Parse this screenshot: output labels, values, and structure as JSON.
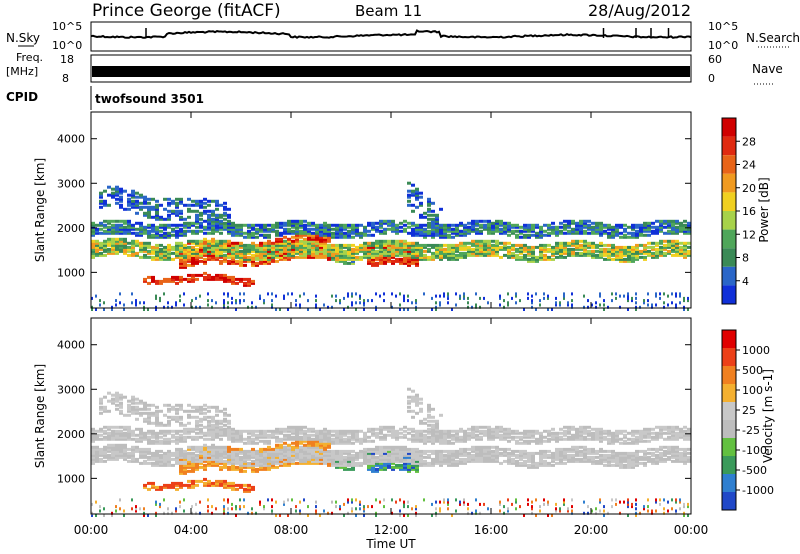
{
  "header": {
    "station": "Prince George (fitACF)",
    "beam": "Beam 11",
    "date": "28/Aug/2012"
  },
  "top_panels": {
    "nsky_label": "N.Sky",
    "nsky_ticks": [
      "10^5",
      "10^0"
    ],
    "nsearch_label": "N.Search",
    "nsearch_ticks": [
      "10^5",
      "10^0"
    ],
    "freq_label_1": "Freq.",
    "freq_label_2": "[MHz]",
    "freq_ticks": [
      "18",
      "8"
    ],
    "nave_label": "Nave",
    "nave_ticks": [
      "60",
      "0"
    ],
    "cpid_label": "CPID",
    "cpid_value": "twofsound 3501"
  },
  "colors": {
    "power_scale": [
      "#1030d8",
      "#2a66c8",
      "#3a8a56",
      "#4fa65a",
      "#a7d24a",
      "#f0d020",
      "#f09a20",
      "#e86418",
      "#e02a10",
      "#d00000"
    ],
    "velocity_scale": [
      "#2048c8",
      "#2f7fd0",
      "#3a9a5a",
      "#62c040",
      "#bdbdbd",
      "#c8c8c8",
      "#f4b030",
      "#f08020",
      "#ec4018",
      "#e00000"
    ],
    "ground_scatter": "#b8b8b8"
  },
  "chart_data": [
    {
      "type": "heatmap",
      "name": "power",
      "ylabel": "Slant Range [km]",
      "yticks": [
        1000,
        2000,
        3000,
        4000
      ],
      "ylim": [
        200,
        4600
      ],
      "xlim": [
        0,
        24
      ],
      "colorbar_label": "Power [dB]",
      "colorbar_ticks": [
        "28",
        "24",
        "20",
        "16",
        "12",
        "8",
        "4"
      ],
      "colorbar_range": [
        0,
        30
      ]
    },
    {
      "type": "heatmap",
      "name": "velocity",
      "ylabel": "Slant Range [km]",
      "yticks": [
        1000,
        2000,
        3000,
        4000
      ],
      "ylim": [
        200,
        4600
      ],
      "xlim": [
        0,
        24
      ],
      "colorbar_label": "Velocity [m s-1]",
      "colorbar_ticks": [
        "1000",
        "500",
        "100",
        "25",
        "-25",
        "-100",
        "-500",
        "-1000"
      ]
    }
  ],
  "xaxis": {
    "ticks": [
      "00:00",
      "04:00",
      "08:00",
      "12:00",
      "16:00",
      "20:00",
      "00:00"
    ],
    "label": "Time UT"
  }
}
